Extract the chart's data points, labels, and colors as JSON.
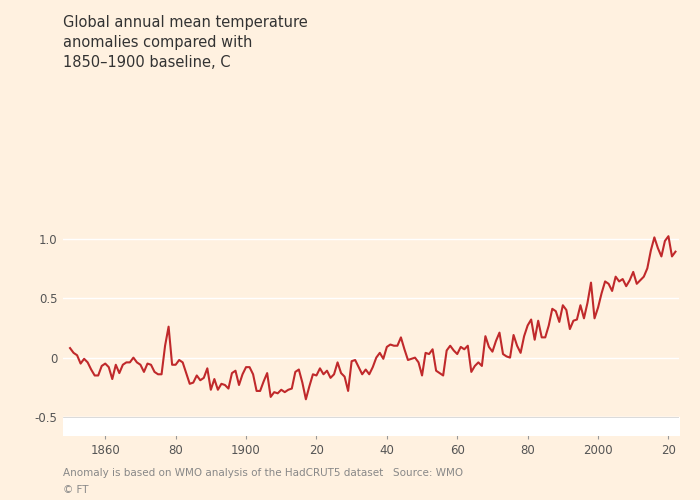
{
  "title": "Global annual mean temperature\nanomalies compared with\n1850–1900 baseline, C",
  "footnote1": "Anomaly is based on WMO analysis of the HadCRUT5 dataset   Source: WMO",
  "footnote2": "© FT",
  "background_color": "#FFF1E0",
  "plot_bg_color": "#FFF1E0",
  "line_color": "#C0292B",
  "ylim": [
    -0.65,
    1.45
  ],
  "yticks": [
    -0.5,
    0.0,
    0.5,
    1.0
  ],
  "grid_color": "#ffffff",
  "title_fontsize": 10.5,
  "footnote_fontsize": 7.5,
  "tick_fontsize": 8.5,
  "xtick_positions": [
    1860,
    1880,
    1900,
    1920,
    1940,
    1960,
    1980,
    2000,
    2020
  ],
  "xtick_labels": [
    "1860",
    "80",
    "1900",
    "20",
    "40",
    "60",
    "80",
    "2000",
    "20"
  ],
  "xlim": [
    1848,
    2023
  ],
  "years": [
    1850,
    1851,
    1852,
    1853,
    1854,
    1855,
    1856,
    1857,
    1858,
    1859,
    1860,
    1861,
    1862,
    1863,
    1864,
    1865,
    1866,
    1867,
    1868,
    1869,
    1870,
    1871,
    1872,
    1873,
    1874,
    1875,
    1876,
    1877,
    1878,
    1879,
    1880,
    1881,
    1882,
    1883,
    1884,
    1885,
    1886,
    1887,
    1888,
    1889,
    1890,
    1891,
    1892,
    1893,
    1894,
    1895,
    1896,
    1897,
    1898,
    1899,
    1900,
    1901,
    1902,
    1903,
    1904,
    1905,
    1906,
    1907,
    1908,
    1909,
    1910,
    1911,
    1912,
    1913,
    1914,
    1915,
    1916,
    1917,
    1918,
    1919,
    1920,
    1921,
    1922,
    1923,
    1924,
    1925,
    1926,
    1927,
    1928,
    1929,
    1930,
    1931,
    1932,
    1933,
    1934,
    1935,
    1936,
    1937,
    1938,
    1939,
    1940,
    1941,
    1942,
    1943,
    1944,
    1945,
    1946,
    1947,
    1948,
    1949,
    1950,
    1951,
    1952,
    1953,
    1954,
    1955,
    1956,
    1957,
    1958,
    1959,
    1960,
    1961,
    1962,
    1963,
    1964,
    1965,
    1966,
    1967,
    1968,
    1969,
    1970,
    1971,
    1972,
    1973,
    1974,
    1975,
    1976,
    1977,
    1978,
    1979,
    1980,
    1981,
    1982,
    1983,
    1984,
    1985,
    1986,
    1987,
    1988,
    1989,
    1990,
    1991,
    1992,
    1993,
    1994,
    1995,
    1996,
    1997,
    1998,
    1999,
    2000,
    2001,
    2002,
    2003,
    2004,
    2005,
    2006,
    2007,
    2008,
    2009,
    2010,
    2011,
    2012,
    2013,
    2014,
    2015,
    2016,
    2017,
    2018,
    2019,
    2020,
    2021,
    2022
  ],
  "anomalies": [
    0.08,
    0.04,
    0.02,
    -0.05,
    -0.01,
    -0.04,
    -0.1,
    -0.15,
    -0.15,
    -0.07,
    -0.05,
    -0.08,
    -0.18,
    -0.06,
    -0.13,
    -0.06,
    -0.04,
    -0.04,
    0.0,
    -0.04,
    -0.06,
    -0.12,
    -0.05,
    -0.06,
    -0.12,
    -0.14,
    -0.14,
    0.1,
    0.26,
    -0.06,
    -0.06,
    -0.02,
    -0.04,
    -0.13,
    -0.22,
    -0.21,
    -0.15,
    -0.19,
    -0.17,
    -0.09,
    -0.27,
    -0.18,
    -0.27,
    -0.22,
    -0.23,
    -0.26,
    -0.13,
    -0.11,
    -0.23,
    -0.14,
    -0.08,
    -0.08,
    -0.14,
    -0.28,
    -0.28,
    -0.2,
    -0.13,
    -0.33,
    -0.29,
    -0.3,
    -0.27,
    -0.29,
    -0.27,
    -0.26,
    -0.12,
    -0.1,
    -0.21,
    -0.35,
    -0.24,
    -0.14,
    -0.15,
    -0.09,
    -0.14,
    -0.11,
    -0.17,
    -0.14,
    -0.04,
    -0.13,
    -0.16,
    -0.28,
    -0.03,
    -0.02,
    -0.08,
    -0.14,
    -0.1,
    -0.14,
    -0.08,
    0.0,
    0.04,
    -0.01,
    0.09,
    0.11,
    0.1,
    0.1,
    0.17,
    0.07,
    -0.02,
    -0.01,
    0.0,
    -0.04,
    -0.15,
    0.04,
    0.03,
    0.07,
    -0.11,
    -0.13,
    -0.15,
    0.06,
    0.1,
    0.06,
    0.03,
    0.09,
    0.07,
    0.1,
    -0.12,
    -0.07,
    -0.04,
    -0.07,
    0.18,
    0.09,
    0.05,
    0.14,
    0.21,
    0.03,
    0.01,
    0.0,
    0.19,
    0.1,
    0.04,
    0.18,
    0.27,
    0.32,
    0.15,
    0.31,
    0.17,
    0.17,
    0.27,
    0.41,
    0.39,
    0.3,
    0.44,
    0.4,
    0.24,
    0.31,
    0.32,
    0.44,
    0.33,
    0.46,
    0.63,
    0.33,
    0.42,
    0.54,
    0.64,
    0.62,
    0.56,
    0.68,
    0.64,
    0.66,
    0.6,
    0.65,
    0.72,
    0.62,
    0.65,
    0.68,
    0.75,
    0.9,
    1.01,
    0.92,
    0.85,
    0.98,
    1.02,
    0.85,
    0.89
  ]
}
